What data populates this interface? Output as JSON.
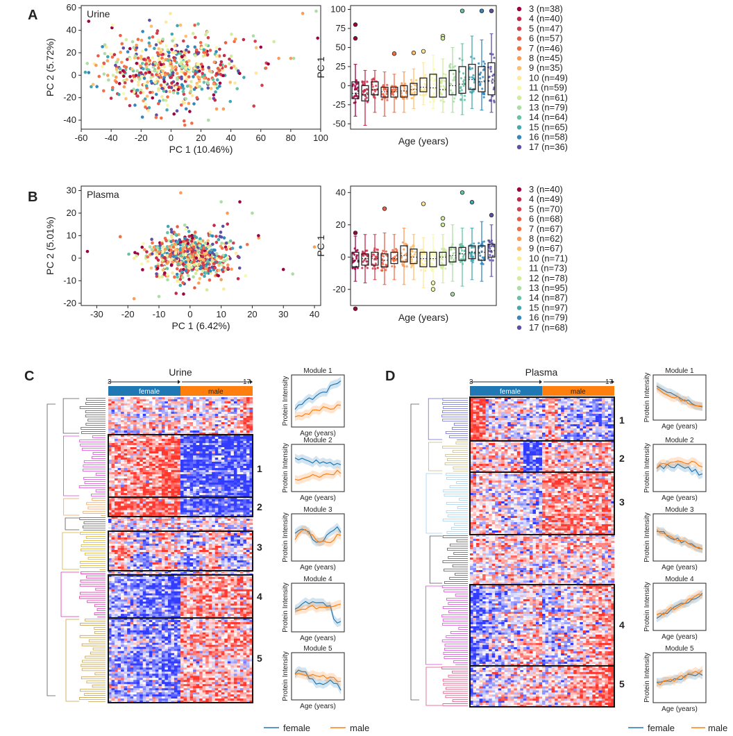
{
  "panels": {
    "A": "A",
    "B": "B",
    "C": "C",
    "D": "D"
  },
  "legend_age": {
    "urine": [
      "3 (n=38)",
      "4 (n=40)",
      "5 (n=47)",
      "6 (n=57)",
      "7 (n=46)",
      "8 (n=45)",
      "9 (n=35)",
      "10 (n=49)",
      "11 (n=59)",
      "12 (n=61)",
      "13 (n=79)",
      "14 (n=64)",
      "15 (n=65)",
      "16 (n=58)",
      "17 (n=36)"
    ],
    "plasma": [
      "3 (n=40)",
      "4 (n=49)",
      "5 (n=70)",
      "6 (n=68)",
      "7 (n=67)",
      "8 (n=62)",
      "9 (n=67)",
      "10 (n=71)",
      "11 (n=73)",
      "12 (n=78)",
      "13 (n=95)",
      "14 (n=87)",
      "15 (n=97)",
      "16 (n=79)",
      "17 (n=68)"
    ]
  },
  "age_colors": [
    "#9e0142",
    "#c2294a",
    "#d53e4f",
    "#e95d47",
    "#f46d43",
    "#fa9c58",
    "#fdbf6f",
    "#fee89a",
    "#f4faad",
    "#d1ec9c",
    "#abdda4",
    "#66c2a5",
    "#42a6b3",
    "#3288bd",
    "#5e4fa2"
  ],
  "chart_data": [
    {
      "id": "A-scatter",
      "type": "scatter",
      "label": "Urine",
      "xlabel": "PC 1 (10.46%)",
      "ylabel": "PC 2 (5.72%)",
      "xlim": [
        -60,
        100
      ],
      "ylim": [
        -48,
        62
      ],
      "xticks": [
        -60,
        -40,
        -20,
        0,
        20,
        40,
        60,
        80,
        100
      ],
      "yticks": [
        -40,
        -20,
        0,
        20,
        40,
        60
      ],
      "center": [
        -2,
        4
      ],
      "spread": [
        20,
        17
      ],
      "n_points": 600,
      "outliers": [
        [
          -55,
          48
        ],
        [
          88,
          55
        ],
        [
          97,
          57
        ],
        [
          98,
          33
        ],
        [
          80,
          15
        ],
        [
          82,
          15
        ],
        [
          60,
          25
        ],
        [
          72,
          15
        ],
        [
          55,
          35
        ],
        [
          65,
          10
        ],
        [
          35,
          -30
        ],
        [
          25,
          -40
        ]
      ]
    },
    {
      "id": "A-box",
      "type": "box",
      "ylabel": "PC 1",
      "xlabel": "Age (years)",
      "ylim": [
        -57,
        105
      ],
      "yticks": [
        -50,
        -25,
        0,
        25,
        50,
        75,
        100
      ],
      "boxes": [
        {
          "q1": -17,
          "med": -10,
          "q3": 5,
          "lo": -40,
          "hi": 28
        },
        {
          "q1": -20,
          "med": -12,
          "q3": 0,
          "lo": -52,
          "hi": 20
        },
        {
          "q1": -12,
          "med": -5,
          "q3": 5,
          "lo": -35,
          "hi": 20
        },
        {
          "q1": -15,
          "med": -8,
          "q3": -2,
          "lo": -40,
          "hi": 18
        },
        {
          "q1": -15,
          "med": -8,
          "q3": -2,
          "lo": -35,
          "hi": 15
        },
        {
          "q1": -15,
          "med": -7,
          "q3": 0,
          "lo": -35,
          "hi": 18
        },
        {
          "q1": -12,
          "med": -5,
          "q3": 3,
          "lo": -30,
          "hi": 22
        },
        {
          "q1": -8,
          "med": -2,
          "q3": 10,
          "lo": -25,
          "hi": 30
        },
        {
          "q1": -15,
          "med": -3,
          "q3": 15,
          "lo": -30,
          "hi": 40
        },
        {
          "q1": -15,
          "med": -5,
          "q3": 10,
          "lo": -35,
          "hi": 35
        },
        {
          "q1": -12,
          "med": 0,
          "q3": 20,
          "lo": -35,
          "hi": 50
        },
        {
          "q1": -10,
          "med": 2,
          "q3": 25,
          "lo": -38,
          "hi": 55
        },
        {
          "q1": -5,
          "med": 8,
          "q3": 28,
          "lo": -30,
          "hi": 65
        },
        {
          "q1": -8,
          "med": 5,
          "q3": 25,
          "lo": -32,
          "hi": 60
        },
        {
          "q1": -12,
          "med": 6,
          "q3": 30,
          "lo": -35,
          "hi": 68
        }
      ],
      "fliers": [
        [
          0,
          80
        ],
        [
          0,
          62
        ],
        [
          6,
          43
        ],
        [
          7,
          45
        ],
        [
          9,
          65
        ],
        [
          9,
          62
        ],
        [
          11,
          98
        ],
        [
          13,
          98
        ],
        [
          14,
          98
        ],
        [
          4,
          42
        ]
      ]
    },
    {
      "id": "B-scatter",
      "type": "scatter",
      "label": "Plasma",
      "xlabel": "PC 1 (6.42%)",
      "ylabel": "PC 2 (5.01%)",
      "xlim": [
        -35,
        42
      ],
      "ylim": [
        -21,
        32
      ],
      "xticks": [
        -30,
        -20,
        -10,
        0,
        10,
        20,
        30,
        40
      ],
      "yticks": [
        -20,
        -10,
        0,
        10,
        20,
        30
      ],
      "center": [
        0,
        1
      ],
      "spread": [
        6,
        5
      ],
      "n_points": 650,
      "outliers": [
        [
          -33,
          3
        ],
        [
          40,
          5
        ],
        [
          33,
          -7
        ],
        [
          30,
          -5
        ],
        [
          -3,
          29
        ],
        [
          10,
          25
        ],
        [
          16,
          25
        ],
        [
          12,
          20
        ],
        [
          20,
          20
        ],
        [
          22,
          10
        ],
        [
          -18,
          -18
        ],
        [
          -10,
          -17
        ]
      ]
    },
    {
      "id": "B-box",
      "type": "box",
      "ylabel": "PC 1",
      "xlabel": "Age (years)",
      "ylim": [
        -30,
        44
      ],
      "yticks": [
        -20,
        0,
        20,
        40
      ],
      "boxes": [
        {
          "q1": -6,
          "med": -2,
          "q3": 3,
          "lo": -15,
          "hi": 13
        },
        {
          "q1": -5,
          "med": -1,
          "q3": 2,
          "lo": -16,
          "hi": 14
        },
        {
          "q1": -5,
          "med": -1,
          "q3": 3,
          "lo": -14,
          "hi": 14
        },
        {
          "q1": -6,
          "med": -2,
          "q3": 2,
          "lo": -17,
          "hi": 15
        },
        {
          "q1": -4,
          "med": -1,
          "q3": 3,
          "lo": -14,
          "hi": 14
        },
        {
          "q1": -3,
          "med": 1,
          "q3": 7,
          "lo": -17,
          "hi": 18
        },
        {
          "q1": -4,
          "med": 0,
          "q3": 5,
          "lo": -14,
          "hi": 14
        },
        {
          "q1": -6,
          "med": -1,
          "q3": 3,
          "lo": -19,
          "hi": 12
        },
        {
          "q1": -6,
          "med": -1,
          "q3": 3,
          "lo": -18,
          "hi": 14
        },
        {
          "q1": -5,
          "med": 0,
          "q3": 3,
          "lo": -16,
          "hi": 14
        },
        {
          "q1": -3,
          "med": 1,
          "q3": 6,
          "lo": -15,
          "hi": 20
        },
        {
          "q1": -2,
          "med": 2,
          "q3": 6,
          "lo": -18,
          "hi": 18
        },
        {
          "q1": -1,
          "med": 3,
          "q3": 7,
          "lo": -14,
          "hi": 18
        },
        {
          "q1": -2,
          "med": 3,
          "q3": 7,
          "lo": -15,
          "hi": 22
        },
        {
          "q1": 0,
          "med": 4,
          "q3": 8,
          "lo": -12,
          "hi": 20
        }
      ],
      "fliers": [
        [
          0,
          -32
        ],
        [
          0,
          15
        ],
        [
          3,
          30
        ],
        [
          7,
          33
        ],
        [
          8,
          -16
        ],
        [
          8,
          -20
        ],
        [
          9,
          24
        ],
        [
          9,
          20
        ],
        [
          10,
          -23
        ],
        [
          11,
          40
        ],
        [
          12,
          34
        ],
        [
          14,
          26
        ]
      ]
    }
  ],
  "heatmap_C": {
    "title": "Urine",
    "age_start": "3",
    "age_end": "17",
    "groups": [
      "female",
      "male"
    ],
    "module_labels": [
      "1",
      "2",
      "3",
      "4",
      "5"
    ]
  },
  "heatmap_D": {
    "title": "Plasma",
    "age_start": "3",
    "age_end": "17",
    "groups": [
      "female",
      "male"
    ],
    "module_labels": [
      "1",
      "2",
      "3",
      "4",
      "5"
    ]
  },
  "modules": {
    "titles": [
      "Module 1",
      "Module 2",
      "Module 3",
      "Module 4",
      "Module 5"
    ],
    "ylabel": "Protein Intensity",
    "xlabel": "Age (years)"
  },
  "bottom_legend": {
    "female": "female",
    "male": "male",
    "female_color": "#1f77b4",
    "male_color": "#ff7f0e"
  }
}
